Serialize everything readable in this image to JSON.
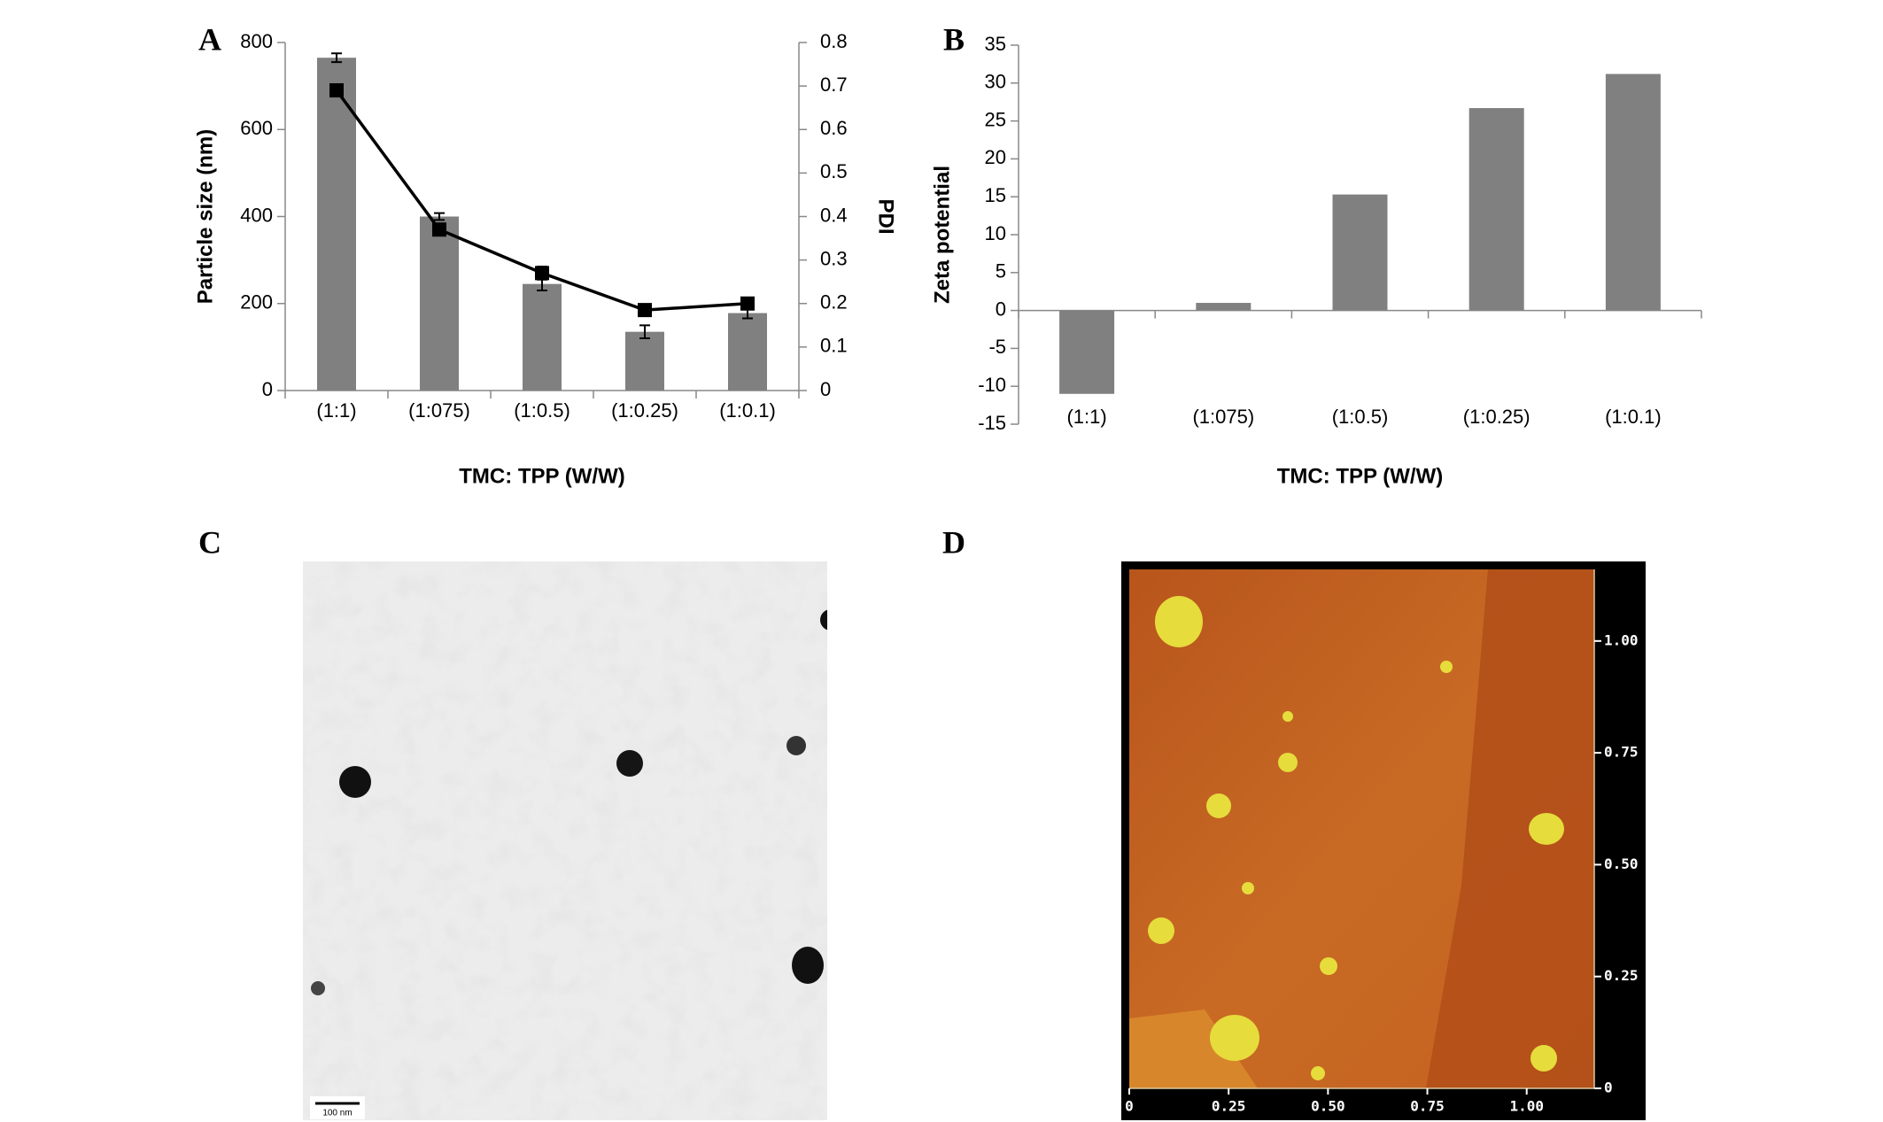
{
  "chart_data": [
    {
      "type": "bar",
      "panel_label": "A",
      "xlabel": "TMC: TPP (W/W)",
      "ylabel": "Particle size (nm)",
      "y2label": "PDI",
      "categories": [
        "(1:1)",
        "(1:075)",
        "(1:0.5)",
        "(1:0.25)",
        "(1:0.1)"
      ],
      "series": [
        {
          "type": "bar",
          "color": "#808080",
          "values": [
            765,
            400,
            245,
            135,
            178
          ],
          "errors": [
            10,
            8,
            15,
            15,
            12
          ]
        },
        {
          "type": "line",
          "axis": "y2",
          "color": "#000000",
          "values": [
            0.69,
            0.37,
            0.27,
            0.185,
            0.2
          ],
          "errors": [
            0.01,
            0.01,
            0.015,
            0.01,
            0.01
          ]
        }
      ],
      "ylim": [
        0,
        800
      ],
      "yticks": [
        0,
        200,
        400,
        600,
        800
      ],
      "y2lim": [
        0,
        0.8
      ],
      "y2ticks": [
        0,
        0.1,
        0.2,
        0.3,
        0.4,
        0.5,
        0.6,
        0.7,
        0.8
      ],
      "grid": false
    },
    {
      "type": "bar",
      "panel_label": "B",
      "xlabel": "TMC: TPP (W/W)",
      "ylabel": "Zeta potential",
      "categories": [
        "(1:1)",
        "(1:075)",
        "(1:0.5)",
        "(1:0.25)",
        "(1:0.1)"
      ],
      "series": [
        {
          "type": "bar",
          "color": "#808080",
          "values": [
            -11,
            1,
            15.3,
            26.7,
            31.2
          ]
        }
      ],
      "ylim": [
        -15,
        35
      ],
      "yticks": [
        -15,
        -10,
        -5,
        0,
        5,
        10,
        15,
        20,
        25,
        30,
        35
      ],
      "grid": false
    }
  ],
  "images": [
    {
      "panel_label": "C",
      "scale_bar_label": "100 nm"
    },
    {
      "panel_label": "D",
      "xlim": [
        0,
        1.17
      ],
      "ylim": [
        0,
        1.16
      ],
      "xticks": [
        0,
        {
          "value": 0.25,
          "label": "0.25"
        },
        {
          "value": 0.5,
          "label": "0.50"
        },
        {
          "value": 0.75,
          "label": "0.75"
        },
        {
          "value": 1,
          "label": "1.00"
        }
      ],
      "yticks": [
        0,
        {
          "value": 0.25,
          "label": "0.25"
        },
        {
          "value": 0.5,
          "label": "0.50"
        },
        {
          "value": 0.75,
          "label": "0.75"
        },
        {
          "value": 1,
          "label": "1.00"
        }
      ]
    }
  ]
}
